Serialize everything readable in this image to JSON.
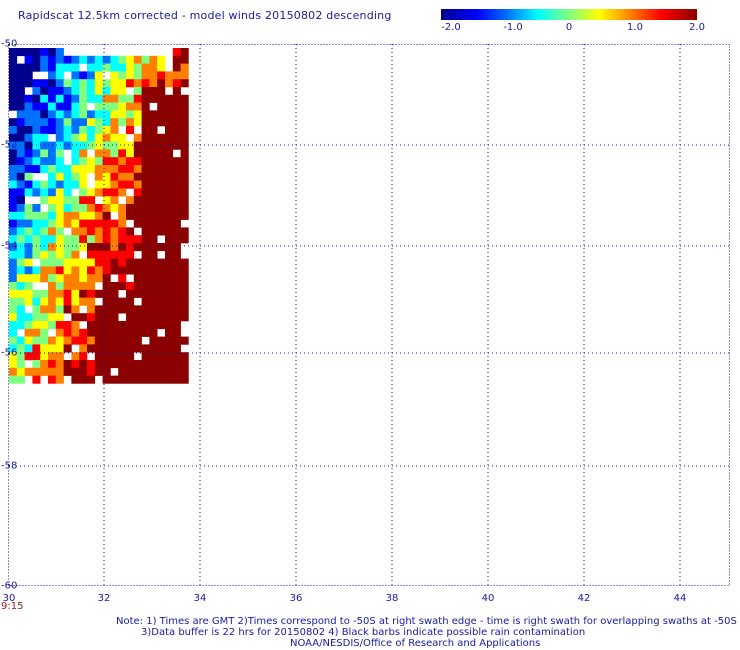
{
  "title": "Rapidscat 12.5km corrected - model winds 20150802 descending",
  "colorbar": {
    "labels": [
      "-2.0",
      "-1.0",
      "0",
      "1.0",
      "2.0"
    ],
    "colors": [
      "#00008f",
      "#0000ff",
      "#0070ff",
      "#00ffff",
      "#80ff80",
      "#ffff00",
      "#ff8000",
      "#ff0000",
      "#8b0000"
    ]
  },
  "axes": {
    "x_ticks": [
      "30",
      "32",
      "34",
      "36",
      "38",
      "40",
      "42",
      "44"
    ],
    "y_ticks": [
      "-50",
      "-52",
      "-54",
      "-56",
      "-58",
      "-60"
    ],
    "x_range": [
      30,
      45
    ],
    "y_range": [
      -50,
      -61
    ],
    "grid": "dotted"
  },
  "swath": {
    "lon_range": [
      30,
      33.7
    ],
    "lat_range": [
      -50.3,
      -57.0
    ],
    "description_values": "difference field in m/s, range -2.0 to 2.0"
  },
  "time_label": "9:15",
  "notes": {
    "line1": "Note: 1) Times are GMT 2)Times correspond to -50S at right swath edge - time is right swath for overlapping swaths at -50S",
    "line2": "3)Data buffer is 22 hrs for 20150802 4) Black barbs indicate possible rain contamination",
    "line3": "NOAA/NESDIS/Office of Research and Applications"
  }
}
